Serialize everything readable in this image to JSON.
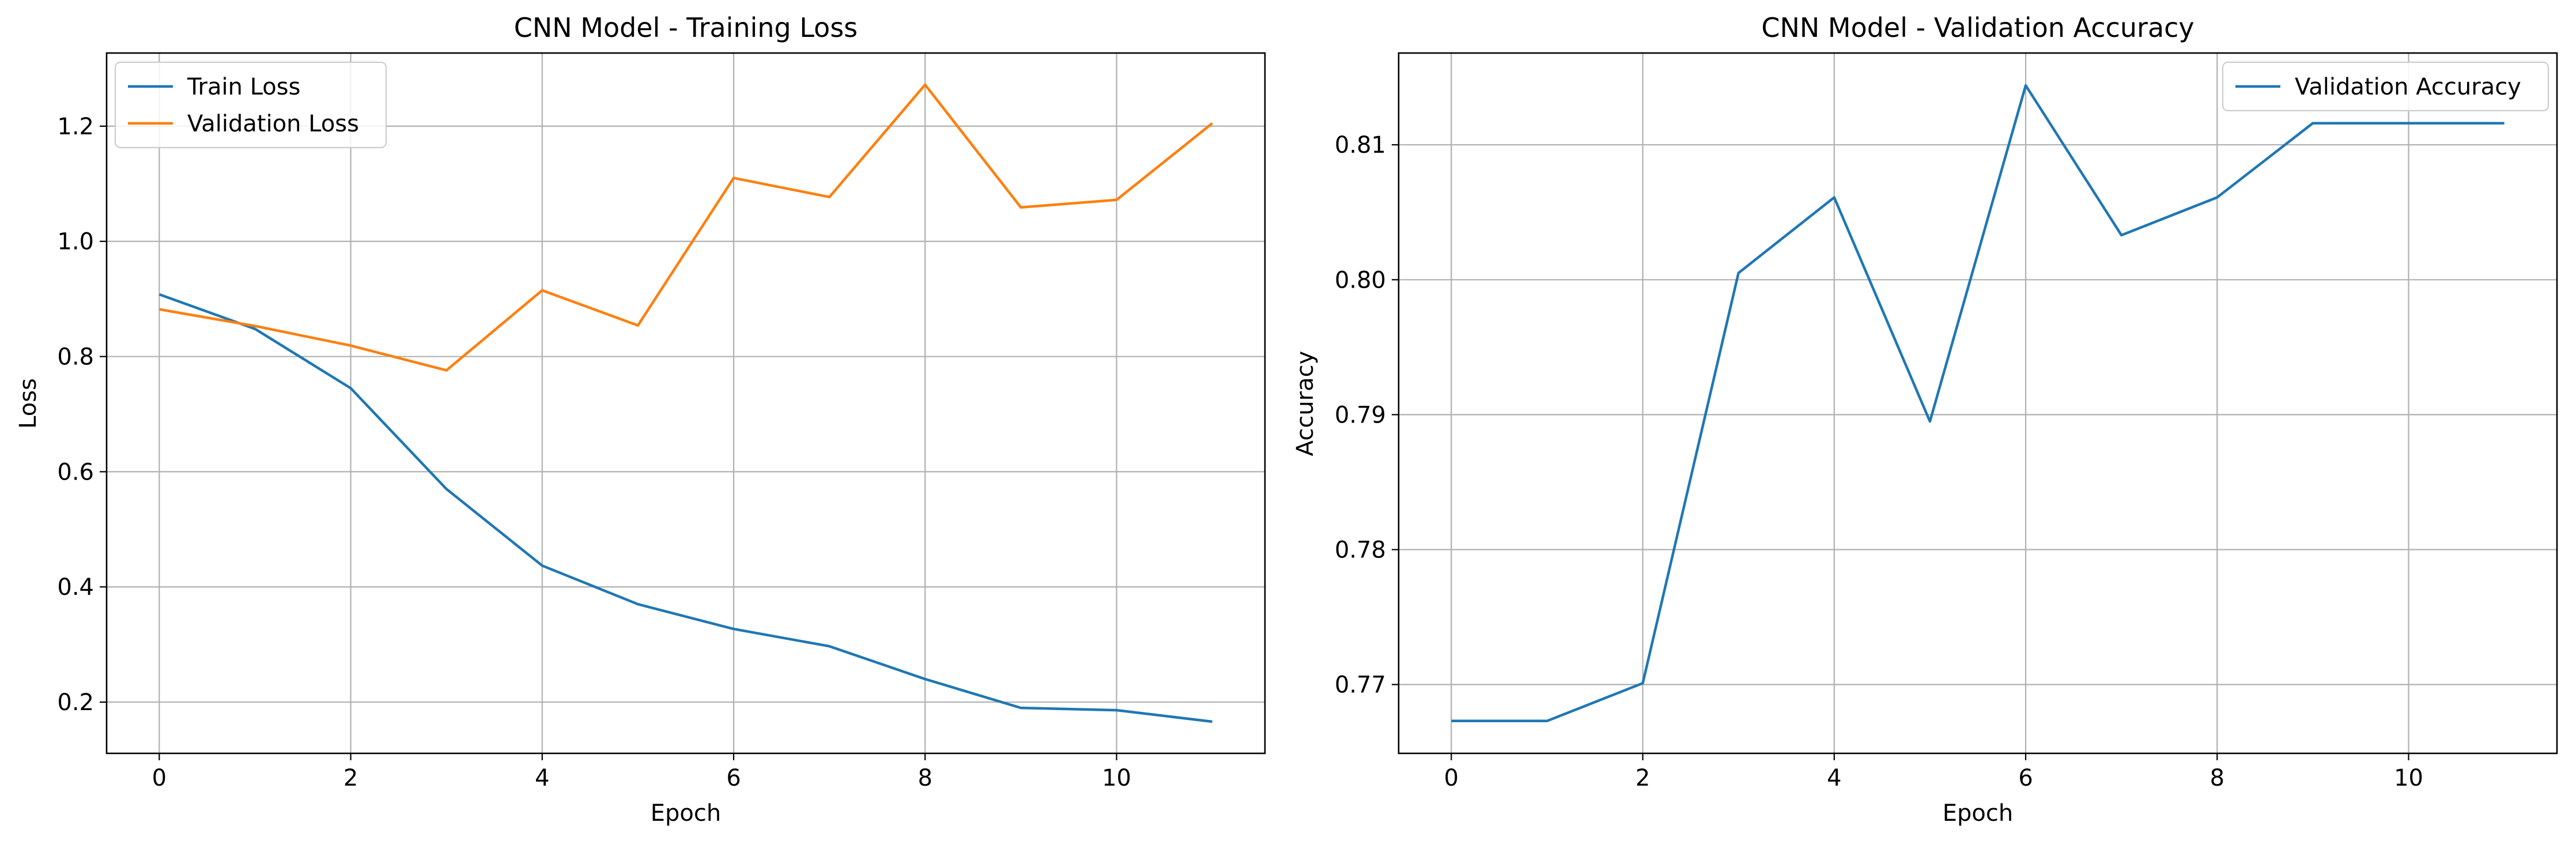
{
  "chart_data": [
    {
      "type": "line",
      "title": "CNN Model - Training Loss",
      "xlabel": "Epoch",
      "ylabel": "Loss",
      "x": [
        0,
        1,
        2,
        3,
        4,
        5,
        6,
        7,
        8,
        9,
        10,
        11
      ],
      "series": [
        {
          "name": "Train Loss",
          "color": "#1f77b4",
          "values": [
            0.908,
            0.848,
            0.745,
            0.57,
            0.437,
            0.37,
            0.327,
            0.297,
            0.24,
            0.19,
            0.186,
            0.166
          ]
        },
        {
          "name": "Validation Loss",
          "color": "#ff7f0e",
          "values": [
            0.882,
            0.853,
            0.819,
            0.776,
            0.915,
            0.854,
            1.11,
            1.077,
            1.272,
            1.059,
            1.072,
            1.205
          ]
        }
      ],
      "xlim": [
        -0.55,
        11.55
      ],
      "ylim": [
        0.111,
        1.327
      ],
      "xticks": [
        0,
        2,
        4,
        6,
        8,
        10
      ],
      "yticks": [
        0.2,
        0.4,
        0.6,
        0.8,
        1.0,
        1.2
      ],
      "ytick_labels": [
        "0.2",
        "0.4",
        "0.6",
        "0.8",
        "1.0",
        "1.2"
      ],
      "grid": true,
      "legend": "upper left"
    },
    {
      "type": "line",
      "title": "CNN Model - Validation Accuracy",
      "xlabel": "Epoch",
      "ylabel": "Accuracy",
      "x": [
        0,
        1,
        2,
        3,
        4,
        5,
        6,
        7,
        8,
        9,
        10,
        11
      ],
      "series": [
        {
          "name": "Validation Accuracy",
          "color": "#1f77b4",
          "values": [
            0.7673,
            0.7673,
            0.7701,
            0.8005,
            0.8061,
            0.7895,
            0.8144,
            0.8033,
            0.8061,
            0.8116,
            0.8116,
            0.8116
          ]
        }
      ],
      "xlim": [
        -0.55,
        11.55
      ],
      "ylim": [
        0.7649,
        0.8168
      ],
      "xticks": [
        0,
        2,
        4,
        6,
        8,
        10
      ],
      "yticks": [
        0.77,
        0.78,
        0.79,
        0.8,
        0.81
      ],
      "ytick_labels": [
        "0.77",
        "0.78",
        "0.79",
        "0.80",
        "0.81"
      ],
      "grid": true,
      "legend": "upper right"
    }
  ]
}
